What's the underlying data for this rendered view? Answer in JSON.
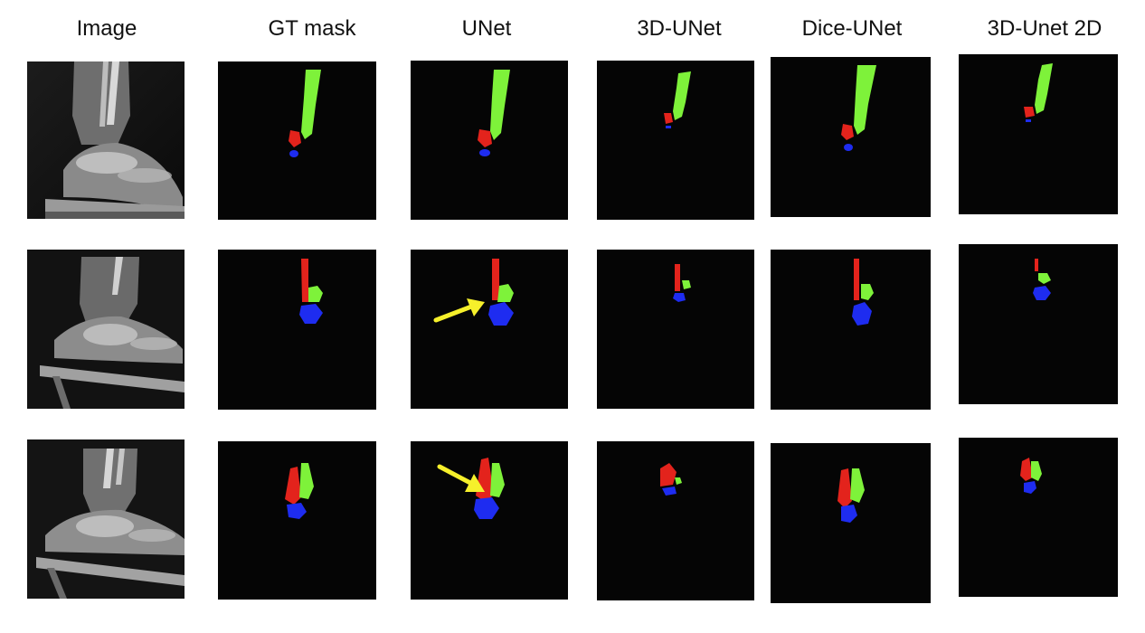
{
  "figure": {
    "columns": [
      "Image",
      "GT mask",
      "UNet",
      "3D-UNet",
      "Dice-UNet",
      "3D-Unet 2D"
    ],
    "rows": 3,
    "colors": {
      "background": "#050505",
      "class_green": "#7ef23a",
      "class_red": "#e3231c",
      "class_blue": "#1e2cf0",
      "arrow": "#f6f02b"
    },
    "annotations": [
      {
        "row": 2,
        "column": "UNet",
        "type": "arrow-icon"
      },
      {
        "row": 3,
        "column": "UNet",
        "type": "arrow-icon"
      }
    ]
  }
}
